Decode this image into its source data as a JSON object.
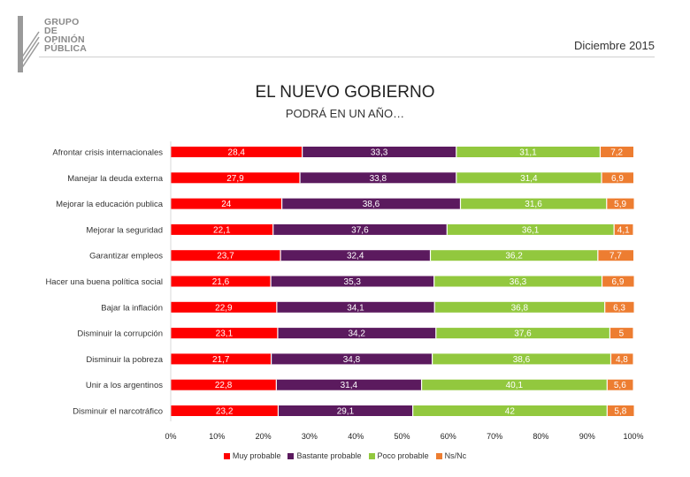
{
  "header": {
    "logo_lines": [
      "GRUPO",
      "DE",
      "OPINIÓN",
      "PÚBLICA"
    ],
    "date": "Diciembre 2015"
  },
  "chart_data": {
    "type": "bar",
    "orientation": "horizontal",
    "stacked": true,
    "title": "EL NUEVO GOBIERNO",
    "subtitle": "PODRÁ EN UN AÑO…",
    "categories": [
      "Afrontar crisis internacionales",
      "Manejar la deuda externa",
      "Mejorar la educación publica",
      "Mejorar la seguridad",
      "Garantizar empleos",
      "Hacer una buena política social",
      "Bajar la inflación",
      "Disminuir la corrupción",
      "Disminuir la pobreza",
      "Unir a los argentinos",
      "Disminuir el narcotráfico"
    ],
    "series": [
      {
        "name": "Muy probable",
        "color": "#ff0000",
        "label_color": "#ffffff",
        "values": [
          28.4,
          27.9,
          24,
          22.1,
          23.7,
          21.6,
          22.9,
          23.1,
          21.7,
          22.8,
          23.2
        ],
        "labels": [
          "28,4",
          "27,9",
          "24",
          "22,1",
          "23,7",
          "21,6",
          "22,9",
          "23,1",
          "21,7",
          "22,8",
          "23,2"
        ]
      },
      {
        "name": "Bastante probable",
        "color": "#5b1a5e",
        "label_color": "#ffffff",
        "values": [
          33.3,
          33.8,
          38.6,
          37.6,
          32.4,
          35.3,
          34.1,
          34.2,
          34.8,
          31.4,
          29.1
        ],
        "labels": [
          "33,3",
          "33,8",
          "38,6",
          "37,6",
          "32,4",
          "35,3",
          "34,1",
          "34,2",
          "34,8",
          "31,4",
          "29,1"
        ]
      },
      {
        "name": "Poco probable",
        "color": "#92c83e",
        "label_color": "#ffffff",
        "values": [
          31.1,
          31.4,
          31.6,
          36.1,
          36.2,
          36.3,
          36.8,
          37.6,
          38.6,
          40.1,
          42
        ],
        "labels": [
          "31,1",
          "31,4",
          "31,6",
          "36,1",
          "36,2",
          "36,3",
          "36,8",
          "37,6",
          "38,6",
          "40,1",
          "42"
        ]
      },
      {
        "name": "Ns/Nc",
        "color": "#ed7d31",
        "label_color": "#ffffff",
        "values": [
          7.2,
          6.9,
          5.9,
          4.1,
          7.7,
          6.9,
          6.3,
          5,
          4.8,
          5.6,
          5.8
        ],
        "labels": [
          "7,2",
          "6,9",
          "5,9",
          "4,1",
          "7,7",
          "6,9",
          "6,3",
          "5",
          "4,8",
          "5,6",
          "5,8"
        ]
      }
    ],
    "xlim": [
      0,
      100
    ],
    "x_ticks": [
      "0%",
      "10%",
      "20%",
      "30%",
      "40%",
      "50%",
      "60%",
      "70%",
      "80%",
      "90%",
      "100%"
    ],
    "legend_position": "bottom",
    "grid": false
  }
}
